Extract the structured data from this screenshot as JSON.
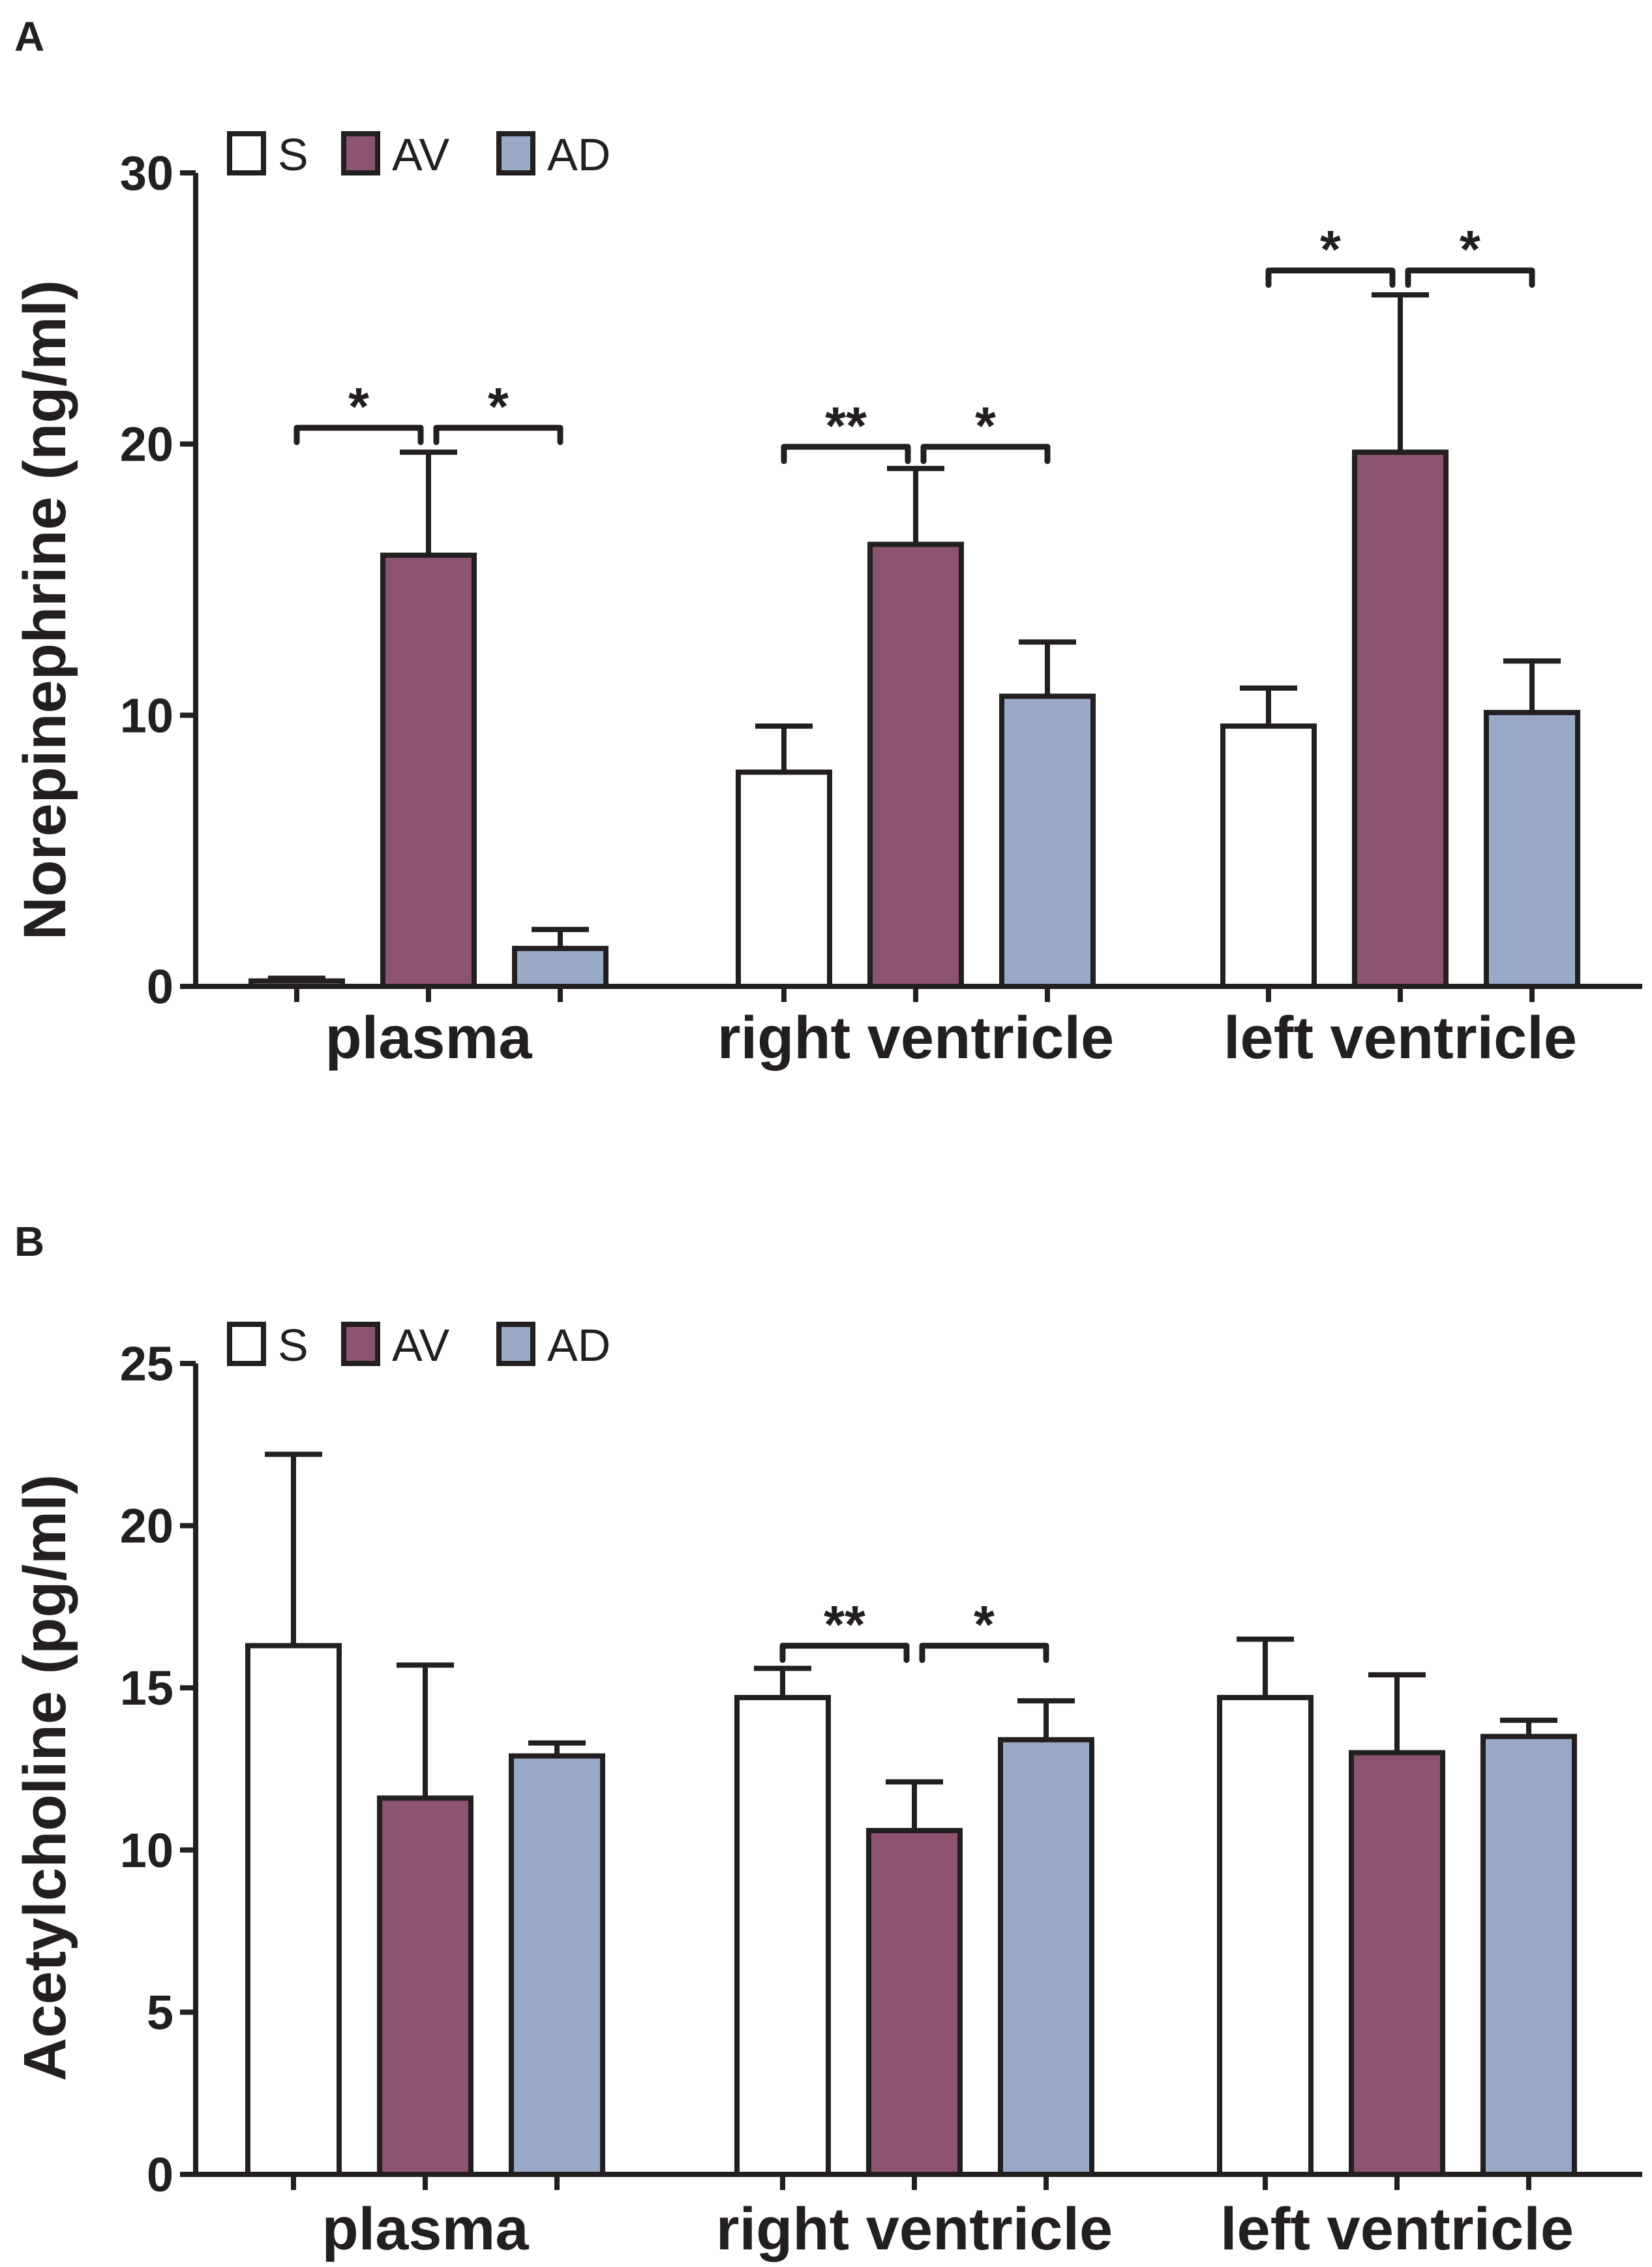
{
  "chart_data": [
    {
      "panel": "A",
      "type": "bar",
      "title": "",
      "ylabel": "Norepinephrine (ng/ml)",
      "xlabel": "",
      "ylim": [
        0,
        30
      ],
      "yticks": [
        0,
        10,
        20,
        30
      ],
      "categories": [
        "plasma",
        "right ventricle",
        "left ventricle"
      ],
      "series": [
        {
          "name": "S",
          "color": "#ffffff",
          "values": [
            0.2,
            7.9,
            9.6
          ],
          "errors": [
            0.1,
            1.7,
            1.4
          ]
        },
        {
          "name": "AV",
          "color": "#8c5470",
          "values": [
            15.9,
            16.3,
            19.7
          ],
          "errors": [
            3.8,
            2.8,
            5.8
          ]
        },
        {
          "name": "AD",
          "color": "#98aac8",
          "values": [
            1.4,
            10.7,
            10.1
          ],
          "errors": [
            0.7,
            2.0,
            1.9
          ]
        }
      ],
      "significance": [
        {
          "category": 0,
          "from": 0,
          "to": 1,
          "y": 20.6,
          "label": "*"
        },
        {
          "category": 0,
          "from": 1,
          "to": 2,
          "y": 20.6,
          "label": "*"
        },
        {
          "category": 1,
          "from": 0,
          "to": 1,
          "y": 19.9,
          "label": "**"
        },
        {
          "category": 1,
          "from": 1,
          "to": 2,
          "y": 19.9,
          "label": "*"
        },
        {
          "category": 2,
          "from": 0,
          "to": 1,
          "y": 26.4,
          "label": "*"
        },
        {
          "category": 2,
          "from": 1,
          "to": 2,
          "y": 26.4,
          "label": "*"
        }
      ],
      "legend": {
        "position": "top-left",
        "entries": [
          "S",
          "AV",
          "AD"
        ]
      }
    },
    {
      "panel": "B",
      "type": "bar",
      "title": "",
      "ylabel": "Acetylcholine (pg/ml)",
      "xlabel": "",
      "ylim": [
        0,
        25
      ],
      "yticks": [
        0,
        5,
        10,
        15,
        20,
        25
      ],
      "categories": [
        "plasma",
        "right ventricle",
        "left ventricle"
      ],
      "series": [
        {
          "name": "S",
          "color": "#ffffff",
          "values": [
            16.3,
            14.7,
            14.7
          ],
          "errors": [
            5.9,
            0.9,
            1.8
          ]
        },
        {
          "name": "AV",
          "color": "#8c5470",
          "values": [
            11.6,
            10.6,
            13.0
          ],
          "errors": [
            4.1,
            1.5,
            2.4
          ]
        },
        {
          "name": "AD",
          "color": "#98aac8",
          "values": [
            12.9,
            13.4,
            13.5
          ],
          "errors": [
            0.4,
            1.2,
            0.5
          ]
        }
      ],
      "significance": [
        {
          "category": 1,
          "from": 0,
          "to": 1,
          "y": 16.3,
          "label": "**"
        },
        {
          "category": 1,
          "from": 1,
          "to": 2,
          "y": 16.3,
          "label": "*"
        }
      ],
      "legend": {
        "position": "top-left",
        "entries": [
          "S",
          "AV",
          "AD"
        ]
      }
    }
  ]
}
